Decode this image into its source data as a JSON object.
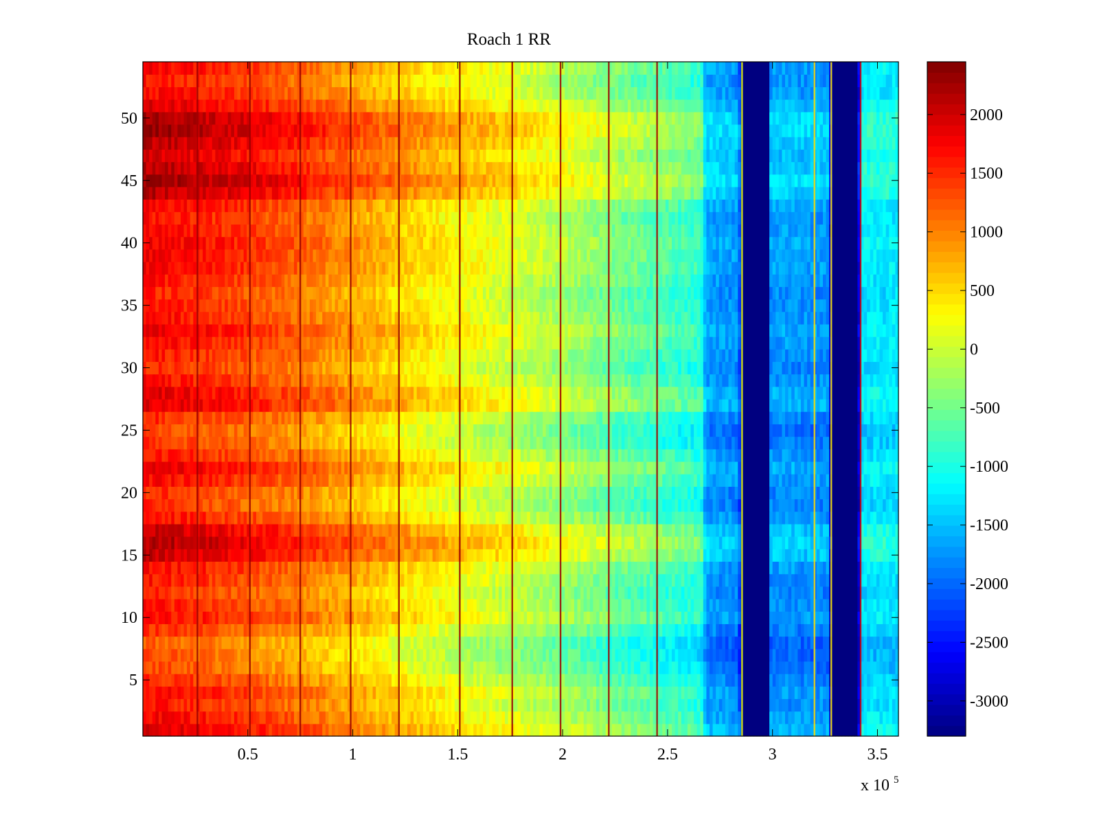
{
  "chart_data": {
    "type": "heatmap",
    "title": "Roach 1 RR",
    "xlabel": "",
    "ylabel": "",
    "x_exponent_label": "x 10",
    "x_exponent_power": "5",
    "x_multiplier": 100000,
    "xlim": [
      0,
      3.6
    ],
    "ylim": [
      0.5,
      54.5
    ],
    "x_ticks": [
      {
        "value": 0.5,
        "label": "0.5"
      },
      {
        "value": 1,
        "label": "1"
      },
      {
        "value": 1.5,
        "label": "1.5"
      },
      {
        "value": 2,
        "label": "2"
      },
      {
        "value": 2.5,
        "label": "2.5"
      },
      {
        "value": 3,
        "label": "3"
      },
      {
        "value": 3.5,
        "label": "3.5"
      }
    ],
    "y_ticks": [
      {
        "value": 5,
        "label": "5"
      },
      {
        "value": 10,
        "label": "10"
      },
      {
        "value": 15,
        "label": "15"
      },
      {
        "value": 20,
        "label": "20"
      },
      {
        "value": 25,
        "label": "25"
      },
      {
        "value": 30,
        "label": "30"
      },
      {
        "value": 35,
        "label": "35"
      },
      {
        "value": 40,
        "label": "40"
      },
      {
        "value": 45,
        "label": "45"
      },
      {
        "value": 50,
        "label": "50"
      }
    ],
    "colorbar": {
      "colormap": "jet",
      "clim": [
        -3300,
        2450
      ],
      "ticks": [
        {
          "value": 2000,
          "label": "2000"
        },
        {
          "value": 1500,
          "label": "1500"
        },
        {
          "value": 1000,
          "label": "1000"
        },
        {
          "value": 500,
          "label": "500"
        },
        {
          "value": 0,
          "label": "0"
        },
        {
          "value": -500,
          "label": "-500"
        },
        {
          "value": -1000,
          "label": "-1000"
        },
        {
          "value": -1500,
          "label": "-1500"
        },
        {
          "value": -2000,
          "label": "-2000"
        },
        {
          "value": -2500,
          "label": "-2500"
        },
        {
          "value": -3000,
          "label": "-3000"
        }
      ]
    },
    "rows": 54,
    "x_trend": [
      {
        "x": 0.0,
        "value": 1650
      },
      {
        "x": 0.25,
        "value": 1500
      },
      {
        "x": 0.5,
        "value": 1300
      },
      {
        "x": 0.75,
        "value": 1050
      },
      {
        "x": 1.0,
        "value": 750
      },
      {
        "x": 1.25,
        "value": 450
      },
      {
        "x": 1.5,
        "value": 200
      },
      {
        "x": 1.75,
        "value": 0
      },
      {
        "x": 2.0,
        "value": -250
      },
      {
        "x": 2.25,
        "value": -550
      },
      {
        "x": 2.5,
        "value": -800
      },
      {
        "x": 2.67,
        "value": -1000
      },
      {
        "x": 2.68,
        "value": -1700
      },
      {
        "x": 2.84,
        "value": -1800
      },
      {
        "x": 2.85,
        "value": -3300
      },
      {
        "x": 2.98,
        "value": -3300
      },
      {
        "x": 2.99,
        "value": -1750
      },
      {
        "x": 3.27,
        "value": -1800
      },
      {
        "x": 3.28,
        "value": -3300
      },
      {
        "x": 3.41,
        "value": -3300
      },
      {
        "x": 3.42,
        "value": -1300
      },
      {
        "x": 3.6,
        "value": -1300
      }
    ],
    "row_offsets": [
      {
        "row": 1,
        "offset": 300
      },
      {
        "row": 2,
        "offset": 150
      },
      {
        "row": 3,
        "offset": 0
      },
      {
        "row": 4,
        "offset": 100
      },
      {
        "row": 5,
        "offset": -100
      },
      {
        "row": 6,
        "offset": -300
      },
      {
        "row": 7,
        "offset": -350
      },
      {
        "row": 8,
        "offset": -400
      },
      {
        "row": 9,
        "offset": -150
      },
      {
        "row": 10,
        "offset": 100
      },
      {
        "row": 11,
        "offset": 0
      },
      {
        "row": 12,
        "offset": -100
      },
      {
        "row": 13,
        "offset": 0
      },
      {
        "row": 14,
        "offset": 100
      },
      {
        "row": 15,
        "offset": 450
      },
      {
        "row": 16,
        "offset": 550
      },
      {
        "row": 17,
        "offset": 400
      },
      {
        "row": 18,
        "offset": 50
      },
      {
        "row": 19,
        "offset": -150
      },
      {
        "row": 20,
        "offset": -100
      },
      {
        "row": 21,
        "offset": 100
      },
      {
        "row": 22,
        "offset": 250
      },
      {
        "row": 23,
        "offset": 0
      },
      {
        "row": 24,
        "offset": -200
      },
      {
        "row": 25,
        "offset": -250
      },
      {
        "row": 26,
        "offset": -100
      },
      {
        "row": 27,
        "offset": 300
      },
      {
        "row": 28,
        "offset": 250
      },
      {
        "row": 29,
        "offset": 50
      },
      {
        "row": 30,
        "offset": -100
      },
      {
        "row": 31,
        "offset": 0
      },
      {
        "row": 32,
        "offset": 100
      },
      {
        "row": 33,
        "offset": 200
      },
      {
        "row": 34,
        "offset": 50
      },
      {
        "row": 35,
        "offset": 0
      },
      {
        "row": 36,
        "offset": -50
      },
      {
        "row": 37,
        "offset": 50
      },
      {
        "row": 38,
        "offset": 150
      },
      {
        "row": 39,
        "offset": 150
      },
      {
        "row": 40,
        "offset": 200
      },
      {
        "row": 41,
        "offset": 100
      },
      {
        "row": 42,
        "offset": 50
      },
      {
        "row": 43,
        "offset": 150
      },
      {
        "row": 44,
        "offset": 500
      },
      {
        "row": 45,
        "offset": 650
      },
      {
        "row": 46,
        "offset": 500
      },
      {
        "row": 47,
        "offset": 350
      },
      {
        "row": 48,
        "offset": 500
      },
      {
        "row": 49,
        "offset": 650
      },
      {
        "row": 50,
        "offset": 600
      },
      {
        "row": 51,
        "offset": 300
      },
      {
        "row": 52,
        "offset": 100
      },
      {
        "row": 53,
        "offset": 0
      },
      {
        "row": 54,
        "offset": 150
      }
    ],
    "vertical_streaks": [
      {
        "x": 0.26,
        "value": 2300
      },
      {
        "x": 0.51,
        "value": 2300
      },
      {
        "x": 0.75,
        "value": 2300
      },
      {
        "x": 0.99,
        "value": 2300
      },
      {
        "x": 1.22,
        "value": 2300
      },
      {
        "x": 1.51,
        "value": 2300
      },
      {
        "x": 1.76,
        "value": 2300
      },
      {
        "x": 1.99,
        "value": 2300
      },
      {
        "x": 2.22,
        "value": 2300
      },
      {
        "x": 2.45,
        "value": 2300
      },
      {
        "x": 2.855,
        "value": 200
      },
      {
        "x": 3.2,
        "value": 500
      },
      {
        "x": 3.28,
        "value": 400
      },
      {
        "x": 3.42,
        "value": 2000
      }
    ]
  }
}
